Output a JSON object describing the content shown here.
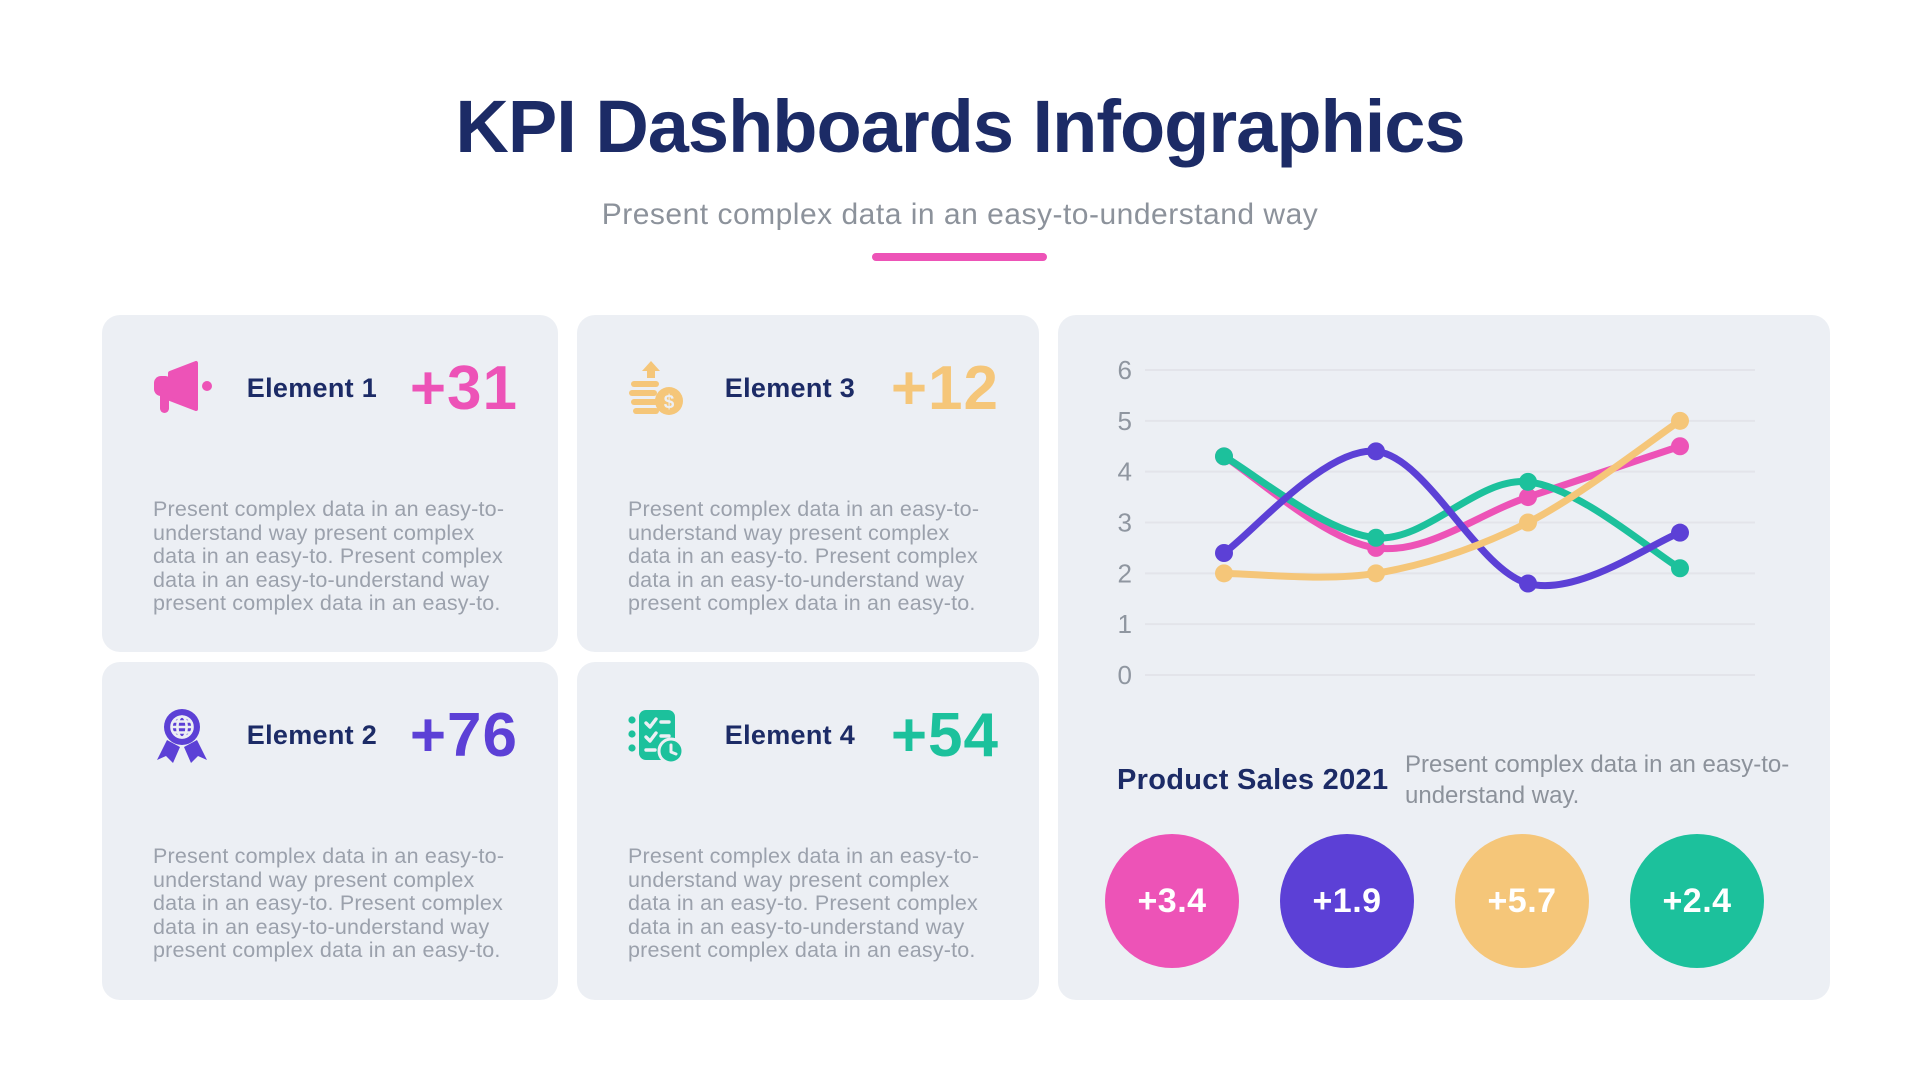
{
  "header": {
    "title": "KPI Dashboards Infographics",
    "subtitle": "Present complex data in an easy-to-understand way",
    "divider_color": "#ed53b7"
  },
  "cards": [
    {
      "label": "Element 1",
      "value": "+31",
      "color": "#ed53b7",
      "icon": "megaphone-icon",
      "body": "Present complex data in an easy-to-understand way present complex data in an easy-to. Present complex data in an easy-to-understand way present complex data in an easy-to."
    },
    {
      "label": "Element 3",
      "value": "+12",
      "color": "#f5c679",
      "icon": "coins-rise-icon",
      "body": "Present complex data in an easy-to-understand way present complex data in an easy-to. Present complex data in an easy-to-understand way present complex data in an easy-to."
    },
    {
      "label": "Element 2",
      "value": "+76",
      "color": "#5c40d6",
      "icon": "medal-globe-icon",
      "body": "Present complex data in an easy-to-understand way present complex data in an easy-to. Present complex data in an easy-to-understand way present complex data in an easy-to."
    },
    {
      "label": "Element 4",
      "value": "+54",
      "color": "#1cc19c",
      "icon": "checklist-clock-icon",
      "body": "Present complex data in an easy-to-understand way present complex data in an easy-to. Present complex data in an easy-to-understand way present complex data in an easy-to."
    }
  ],
  "panel": {
    "heading": "Product Sales 2021",
    "description": "Present complex data in an easy-to-understand way.",
    "stats": [
      {
        "value": "+3.4",
        "color": "#ed53b7"
      },
      {
        "value": "+1.9",
        "color": "#5c40d6"
      },
      {
        "value": "+5.7",
        "color": "#f5c679"
      },
      {
        "value": "+2.4",
        "color": "#1cc19c"
      }
    ]
  },
  "chart_data": {
    "type": "line",
    "title": "Product Sales 2021",
    "x": [
      1,
      2,
      3,
      4
    ],
    "series": [
      {
        "name": "pink",
        "color": "#ed53b7",
        "values": [
          4.3,
          2.5,
          3.5,
          4.5
        ]
      },
      {
        "name": "teal",
        "color": "#1cc19c",
        "values": [
          4.3,
          2.7,
          3.8,
          2.1
        ]
      },
      {
        "name": "purple",
        "color": "#5c40d6",
        "values": [
          2.4,
          4.4,
          1.8,
          2.8
        ]
      },
      {
        "name": "yellow",
        "color": "#f5c679",
        "values": [
          2.0,
          2.0,
          3.0,
          5.0
        ]
      }
    ],
    "ylim": [
      0,
      6
    ],
    "yticks": [
      6,
      5,
      4,
      3,
      2,
      1,
      0
    ],
    "xlabels": [],
    "grid": true,
    "legend": false,
    "gridline_color": "#e3e4ea",
    "tick_color": "#8f96a0"
  }
}
